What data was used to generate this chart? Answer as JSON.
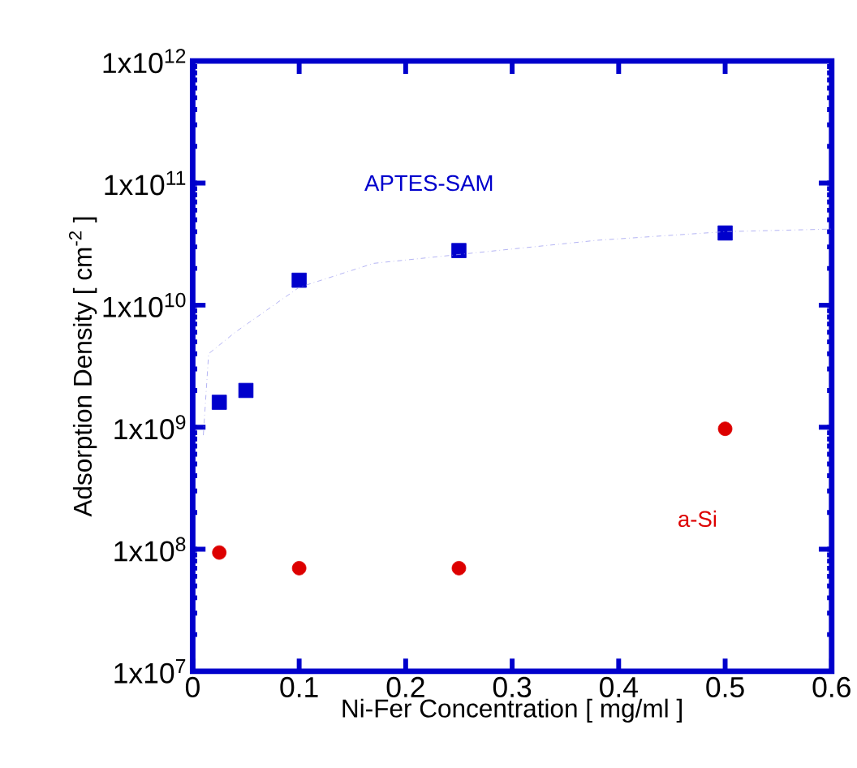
{
  "chart_data": {
    "type": "scatter",
    "xlabel": "Ni-Fer Concentration [ mg/ml ]",
    "ylabel": "Adsorption Density [ cm$^{-2}$ ]",
    "log": "y",
    "grid": false,
    "legend": false,
    "xlim": [
      0,
      0.6
    ],
    "xticks": [
      0,
      0.1,
      0.2,
      0.3,
      0.4,
      0.5,
      0.6
    ],
    "ylim": [
      10000000.0,
      1000000000000.0
    ],
    "yticks": [
      {
        "value": 10000000.0,
        "label": "1x10$^{7}$"
      },
      {
        "value": 100000000.0,
        "label": "1x10$^{8}$"
      },
      {
        "value": 1000000000.0,
        "label": "1x10$^{9}$"
      },
      {
        "value": 10000000000.0,
        "label": "1x10$^{10}$"
      },
      {
        "value": 100000000000.0,
        "label": "1x10$^{11}$"
      },
      {
        "value": 1000000000000.0,
        "label": "1x10$^{12}$"
      }
    ],
    "series": [
      {
        "name": "APTES-SAM",
        "color": "#0000cc",
        "marker": "square",
        "x": [
          0.025,
          0.05,
          0.1,
          0.25,
          0.5
        ],
        "values": [
          1600000000.0,
          2000000000.0,
          16000000000.0,
          28000000000.0,
          39000000000.0
        ]
      },
      {
        "name": "a-Si",
        "color": "#dd0000",
        "marker": "circle",
        "x": [
          0.025,
          0.1,
          0.25,
          0.5
        ],
        "values": [
          94000000.0,
          70000000.0,
          70000000.0,
          970000000.0
        ]
      },
      {
        "type": "line",
        "color": "#a0a0f0",
        "marker": "none",
        "line_style": "dashed",
        "x": [
          0.01,
          0.015,
          0.04,
          0.1,
          0.17,
          0.25,
          0.38,
          0.5,
          0.6
        ],
        "values": [
          860000000.0,
          4000000000.0,
          6000000000.0,
          14000000000.0,
          22000000000.0,
          26000000000.0,
          34000000000.0,
          40000000000.0,
          42000000000.0
        ]
      }
    ]
  }
}
